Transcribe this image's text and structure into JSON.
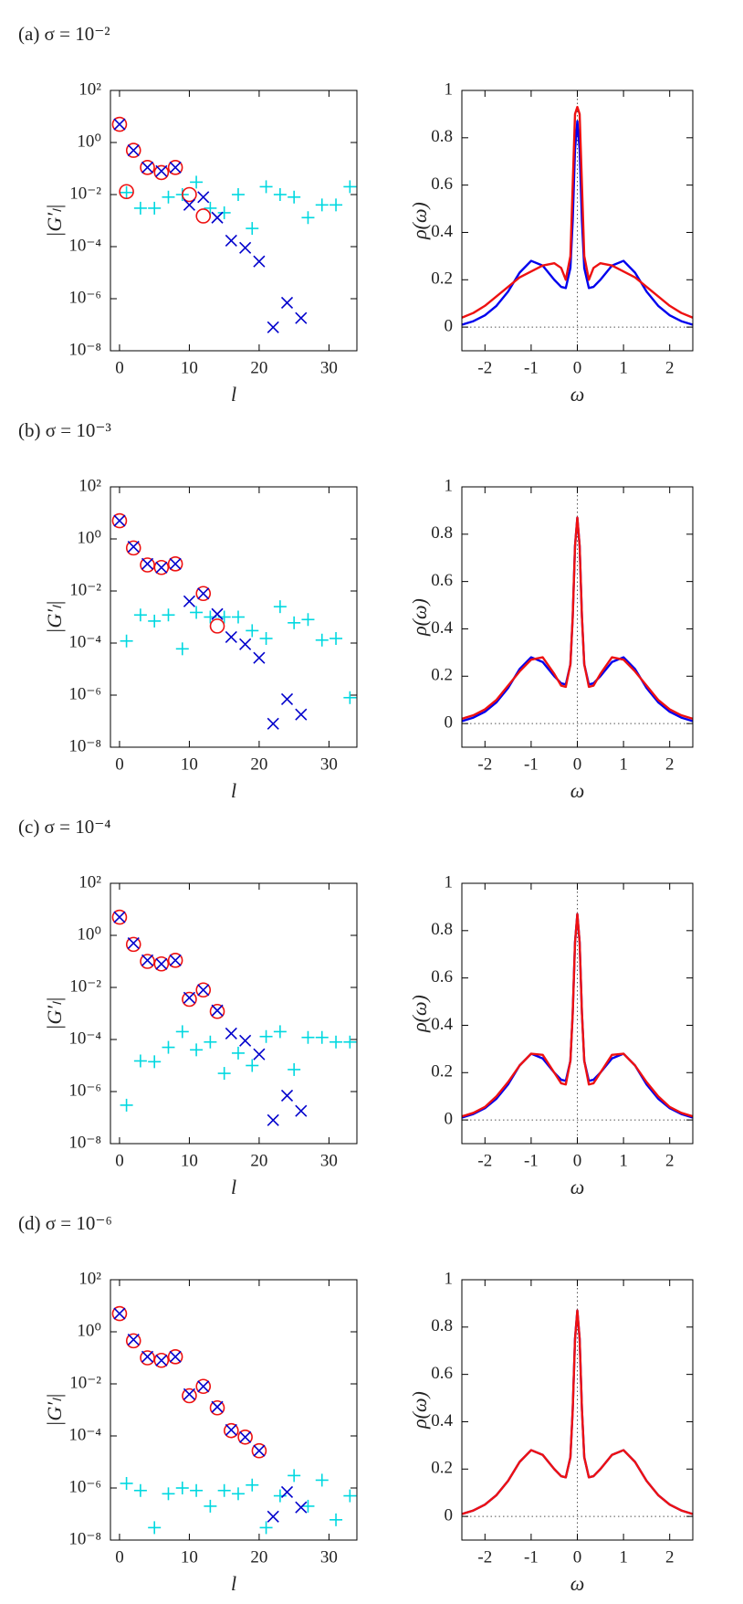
{
  "chart_data": [
    {
      "type": "scatter",
      "title": "(a) σ = 10⁻²",
      "x_label": "l",
      "y_label": "|G′ₗ|",
      "log_y": true,
      "xlim": [
        -1.3,
        34
      ],
      "ylim": [
        1e-08,
        100
      ],
      "xticks": [
        0,
        10,
        20,
        30
      ],
      "yticks": [
        {
          "value": 1e-08,
          "label": "10⁻⁸"
        },
        {
          "value": 1e-06,
          "label": "10⁻⁶"
        },
        {
          "value": 0.0001,
          "label": "10⁻⁴"
        },
        {
          "value": 0.01,
          "label": "10⁻²"
        },
        {
          "value": 1,
          "label": "10⁰"
        },
        {
          "value": 100,
          "label": "10²"
        }
      ],
      "series": [
        {
          "marker": "plus",
          "color": "#00d8e0",
          "x": [
            1,
            3,
            5,
            7,
            9,
            11,
            13,
            15,
            17,
            19,
            21,
            23,
            25,
            27,
            29,
            31,
            33
          ],
          "values": [
            0.012,
            0.003,
            0.003,
            0.008,
            0.01,
            0.03,
            0.003,
            0.002,
            0.01,
            0.0005,
            0.02,
            0.01,
            0.008,
            0.0013,
            0.004,
            0.004,
            0.02
          ]
        },
        {
          "marker": "circle",
          "color": "#ee1111",
          "x": [
            0,
            1,
            2,
            4,
            6,
            8,
            10,
            12
          ],
          "values": [
            5,
            0.013,
            0.5,
            0.11,
            0.07,
            0.11,
            0.01,
            0.0015
          ]
        },
        {
          "marker": "x",
          "color": "#0000cc",
          "x": [
            0,
            2,
            4,
            6,
            8,
            10,
            12,
            14,
            16,
            18,
            20,
            22,
            24,
            26
          ],
          "values": [
            5,
            0.5,
            0.11,
            0.08,
            0.11,
            0.004,
            0.008,
            0.0013,
            0.00017,
            9e-05,
            2.7e-05,
            8e-08,
            7e-07,
            1.8e-07
          ]
        }
      ]
    },
    {
      "type": "line",
      "x_label": "ω",
      "y_label": "ρ(ω)",
      "xlim": [
        -2.5,
        2.5
      ],
      "ylim": [
        -0.1,
        1
      ],
      "xticks": [
        -2,
        -1,
        0,
        1,
        2
      ],
      "yticks": [
        0,
        0.2,
        0.4,
        0.6,
        0.8,
        1
      ],
      "x": [
        -2.5,
        -2.25,
        -2,
        -1.75,
        -1.5,
        -1.25,
        -1,
        -0.75,
        -0.5,
        -0.35,
        -0.25,
        -0.15,
        -0.1,
        -0.05,
        0,
        0.05,
        0.1,
        0.15,
        0.25,
        0.35,
        0.5,
        0.75,
        1,
        1.25,
        1.5,
        1.75,
        2,
        2.25,
        2.5
      ],
      "series": [
        {
          "color": "#0000ee",
          "values": [
            0.01,
            0.025,
            0.05,
            0.09,
            0.15,
            0.23,
            0.28,
            0.26,
            0.2,
            0.17,
            0.165,
            0.25,
            0.45,
            0.75,
            0.87,
            0.75,
            0.45,
            0.25,
            0.165,
            0.17,
            0.2,
            0.26,
            0.28,
            0.23,
            0.15,
            0.09,
            0.05,
            0.025,
            0.01
          ]
        },
        {
          "color": "#ee1111",
          "values": [
            0.04,
            0.06,
            0.09,
            0.13,
            0.17,
            0.21,
            0.235,
            0.26,
            0.27,
            0.25,
            0.2,
            0.3,
            0.6,
            0.9,
            0.93,
            0.9,
            0.6,
            0.3,
            0.2,
            0.25,
            0.27,
            0.26,
            0.235,
            0.21,
            0.17,
            0.13,
            0.09,
            0.06,
            0.04
          ]
        }
      ]
    },
    {
      "type": "scatter",
      "title": "(b) σ = 10⁻³",
      "x_label": "l",
      "y_label": "|G′ₗ|",
      "log_y": true,
      "xlim": [
        -1.3,
        34
      ],
      "ylim": [
        1e-08,
        100
      ],
      "xticks": [
        0,
        10,
        20,
        30
      ],
      "yticks": [
        {
          "value": 1e-08,
          "label": "10⁻⁸"
        },
        {
          "value": 1e-06,
          "label": "10⁻⁶"
        },
        {
          "value": 0.0001,
          "label": "10⁻⁴"
        },
        {
          "value": 0.01,
          "label": "10⁻²"
        },
        {
          "value": 1,
          "label": "10⁰"
        },
        {
          "value": 100,
          "label": "10²"
        }
      ],
      "series": [
        {
          "marker": "plus",
          "color": "#00d8e0",
          "x": [
            1,
            3,
            5,
            7,
            9,
            11,
            13,
            15,
            17,
            19,
            21,
            23,
            25,
            27,
            29,
            31,
            33
          ],
          "values": [
            0.00012,
            0.0012,
            0.0007,
            0.0012,
            6e-05,
            0.0015,
            0.001,
            0.001,
            0.001,
            0.0003,
            0.00015,
            0.0025,
            0.0006,
            0.0008,
            0.00013,
            0.00015,
            8e-07
          ]
        },
        {
          "marker": "circle",
          "color": "#ee1111",
          "x": [
            0,
            2,
            4,
            6,
            8,
            12,
            14
          ],
          "values": [
            5,
            0.45,
            0.1,
            0.08,
            0.11,
            0.008,
            0.00045
          ]
        },
        {
          "marker": "x",
          "color": "#0000cc",
          "x": [
            0,
            2,
            4,
            6,
            8,
            10,
            12,
            14,
            16,
            18,
            20,
            22,
            24,
            26
          ],
          "values": [
            5,
            0.5,
            0.11,
            0.08,
            0.11,
            0.004,
            0.008,
            0.0013,
            0.00017,
            9e-05,
            2.7e-05,
            8e-08,
            7e-07,
            1.8e-07
          ]
        }
      ]
    },
    {
      "type": "line",
      "x_label": "ω",
      "y_label": "ρ(ω)",
      "xlim": [
        -2.5,
        2.5
      ],
      "ylim": [
        -0.1,
        1
      ],
      "xticks": [
        -2,
        -1,
        0,
        1,
        2
      ],
      "yticks": [
        0,
        0.2,
        0.4,
        0.6,
        0.8,
        1
      ],
      "x": [
        -2.5,
        -2.25,
        -2,
        -1.75,
        -1.5,
        -1.25,
        -1,
        -0.75,
        -0.5,
        -0.35,
        -0.25,
        -0.15,
        -0.1,
        -0.05,
        0,
        0.05,
        0.1,
        0.15,
        0.25,
        0.35,
        0.5,
        0.75,
        1,
        1.25,
        1.5,
        1.75,
        2,
        2.25,
        2.5
      ],
      "series": [
        {
          "color": "#0000ee",
          "values": [
            0.01,
            0.025,
            0.05,
            0.09,
            0.15,
            0.23,
            0.28,
            0.26,
            0.2,
            0.17,
            0.165,
            0.25,
            0.45,
            0.75,
            0.87,
            0.75,
            0.45,
            0.25,
            0.165,
            0.17,
            0.2,
            0.26,
            0.28,
            0.23,
            0.15,
            0.09,
            0.05,
            0.025,
            0.01
          ]
        },
        {
          "color": "#ee1111",
          "values": [
            0.02,
            0.035,
            0.06,
            0.1,
            0.16,
            0.22,
            0.27,
            0.28,
            0.21,
            0.16,
            0.155,
            0.25,
            0.45,
            0.75,
            0.87,
            0.75,
            0.45,
            0.25,
            0.155,
            0.16,
            0.21,
            0.28,
            0.27,
            0.22,
            0.16,
            0.1,
            0.06,
            0.035,
            0.02
          ]
        }
      ]
    },
    {
      "type": "scatter",
      "title": "(c) σ = 10⁻⁴",
      "x_label": "l",
      "y_label": "|G′ₗ|",
      "log_y": true,
      "xlim": [
        -1.3,
        34
      ],
      "ylim": [
        1e-08,
        100
      ],
      "xticks": [
        0,
        10,
        20,
        30
      ],
      "yticks": [
        {
          "value": 1e-08,
          "label": "10⁻⁸"
        },
        {
          "value": 1e-06,
          "label": "10⁻⁶"
        },
        {
          "value": 0.0001,
          "label": "10⁻⁴"
        },
        {
          "value": 0.01,
          "label": "10⁻²"
        },
        {
          "value": 1,
          "label": "10⁰"
        },
        {
          "value": 100,
          "label": "10²"
        }
      ],
      "series": [
        {
          "marker": "plus",
          "color": "#00d8e0",
          "x": [
            1,
            3,
            5,
            7,
            9,
            11,
            13,
            15,
            17,
            19,
            21,
            23,
            25,
            27,
            29,
            31,
            33
          ],
          "values": [
            3e-07,
            1.5e-05,
            1.4e-05,
            5e-05,
            0.0002,
            4e-05,
            8e-05,
            5e-06,
            3e-05,
            1e-05,
            0.00013,
            0.0002,
            7e-06,
            0.00012,
            0.00012,
            8e-05,
            8e-05
          ]
        },
        {
          "marker": "circle",
          "color": "#ee1111",
          "x": [
            0,
            2,
            4,
            6,
            8,
            10,
            12,
            14
          ],
          "values": [
            5,
            0.45,
            0.1,
            0.08,
            0.11,
            0.0035,
            0.008,
            0.0012
          ]
        },
        {
          "marker": "x",
          "color": "#0000cc",
          "x": [
            0,
            2,
            4,
            6,
            8,
            10,
            12,
            14,
            16,
            18,
            20,
            22,
            24,
            26
          ],
          "values": [
            5,
            0.5,
            0.11,
            0.08,
            0.11,
            0.004,
            0.008,
            0.0013,
            0.00017,
            9e-05,
            2.7e-05,
            8e-08,
            7e-07,
            1.8e-07
          ]
        }
      ]
    },
    {
      "type": "line",
      "x_label": "ω",
      "y_label": "ρ(ω)",
      "xlim": [
        -2.5,
        2.5
      ],
      "ylim": [
        -0.1,
        1
      ],
      "xticks": [
        -2,
        -1,
        0,
        1,
        2
      ],
      "yticks": [
        0,
        0.2,
        0.4,
        0.6,
        0.8,
        1
      ],
      "x": [
        -2.5,
        -2.25,
        -2,
        -1.75,
        -1.5,
        -1.25,
        -1,
        -0.75,
        -0.5,
        -0.35,
        -0.25,
        -0.15,
        -0.1,
        -0.05,
        0,
        0.05,
        0.1,
        0.15,
        0.25,
        0.35,
        0.5,
        0.75,
        1,
        1.25,
        1.5,
        1.75,
        2,
        2.25,
        2.5
      ],
      "series": [
        {
          "color": "#0000ee",
          "values": [
            0.01,
            0.025,
            0.05,
            0.09,
            0.15,
            0.23,
            0.28,
            0.26,
            0.2,
            0.17,
            0.165,
            0.25,
            0.45,
            0.75,
            0.87,
            0.75,
            0.45,
            0.25,
            0.165,
            0.17,
            0.2,
            0.26,
            0.28,
            0.23,
            0.15,
            0.09,
            0.05,
            0.025,
            0.01
          ]
        },
        {
          "color": "#ee1111",
          "values": [
            0.015,
            0.03,
            0.055,
            0.1,
            0.16,
            0.23,
            0.28,
            0.275,
            0.2,
            0.155,
            0.15,
            0.25,
            0.45,
            0.75,
            0.87,
            0.75,
            0.45,
            0.25,
            0.15,
            0.155,
            0.2,
            0.275,
            0.28,
            0.23,
            0.16,
            0.1,
            0.055,
            0.03,
            0.015
          ]
        }
      ]
    },
    {
      "type": "scatter",
      "title": "(d) σ = 10⁻⁶",
      "x_label": "l",
      "y_label": "|G′ₗ|",
      "log_y": true,
      "xlim": [
        -1.3,
        34
      ],
      "ylim": [
        1e-08,
        100
      ],
      "xticks": [
        0,
        10,
        20,
        30
      ],
      "yticks": [
        {
          "value": 1e-08,
          "label": "10⁻⁸"
        },
        {
          "value": 1e-06,
          "label": "10⁻⁶"
        },
        {
          "value": 0.0001,
          "label": "10⁻⁴"
        },
        {
          "value": 0.01,
          "label": "10⁻²"
        },
        {
          "value": 1,
          "label": "10⁰"
        },
        {
          "value": 100,
          "label": "10²"
        }
      ],
      "series": [
        {
          "marker": "plus",
          "color": "#00d8e0",
          "x": [
            1,
            3,
            5,
            7,
            9,
            11,
            13,
            15,
            17,
            19,
            21,
            23,
            25,
            27,
            29,
            31,
            33
          ],
          "values": [
            1.5e-06,
            8e-07,
            3e-08,
            6e-07,
            1e-06,
            8e-07,
            2e-07,
            8e-07,
            6e-07,
            1.3e-06,
            3e-08,
            5e-07,
            3e-06,
            2e-07,
            2e-06,
            6e-08,
            5e-07
          ]
        },
        {
          "marker": "circle",
          "color": "#ee1111",
          "x": [
            0,
            2,
            4,
            6,
            8,
            10,
            12,
            14,
            16,
            18,
            20
          ],
          "values": [
            5,
            0.45,
            0.1,
            0.08,
            0.11,
            0.0035,
            0.008,
            0.0012,
            0.00016,
            9e-05,
            2.7e-05
          ]
        },
        {
          "marker": "x",
          "color": "#0000cc",
          "x": [
            0,
            2,
            4,
            6,
            8,
            10,
            12,
            14,
            16,
            18,
            20,
            22,
            24,
            26
          ],
          "values": [
            5,
            0.5,
            0.11,
            0.08,
            0.11,
            0.004,
            0.008,
            0.0013,
            0.00017,
            9e-05,
            2.7e-05,
            8e-08,
            7e-07,
            1.8e-07
          ]
        }
      ]
    },
    {
      "type": "line",
      "x_label": "ω",
      "y_label": "ρ(ω)",
      "xlim": [
        -2.5,
        2.5
      ],
      "ylim": [
        -0.1,
        1
      ],
      "xticks": [
        -2,
        -1,
        0,
        1,
        2
      ],
      "yticks": [
        0,
        0.2,
        0.4,
        0.6,
        0.8,
        1
      ],
      "x": [
        -2.5,
        -2.25,
        -2,
        -1.75,
        -1.5,
        -1.25,
        -1,
        -0.75,
        -0.5,
        -0.35,
        -0.25,
        -0.15,
        -0.1,
        -0.05,
        0,
        0.05,
        0.1,
        0.15,
        0.25,
        0.35,
        0.5,
        0.75,
        1,
        1.25,
        1.5,
        1.75,
        2,
        2.25,
        2.5
      ],
      "series": [
        {
          "color": "#0000ee",
          "values": [
            0.01,
            0.025,
            0.05,
            0.09,
            0.15,
            0.23,
            0.28,
            0.26,
            0.2,
            0.17,
            0.165,
            0.25,
            0.45,
            0.75,
            0.87,
            0.75,
            0.45,
            0.25,
            0.165,
            0.17,
            0.2,
            0.26,
            0.28,
            0.23,
            0.15,
            0.09,
            0.05,
            0.025,
            0.01
          ]
        },
        {
          "color": "#ee1111",
          "values": [
            0.01,
            0.025,
            0.05,
            0.09,
            0.15,
            0.23,
            0.28,
            0.26,
            0.2,
            0.17,
            0.165,
            0.25,
            0.45,
            0.75,
            0.87,
            0.75,
            0.45,
            0.25,
            0.165,
            0.17,
            0.2,
            0.26,
            0.28,
            0.23,
            0.15,
            0.09,
            0.05,
            0.025,
            0.01
          ]
        }
      ]
    }
  ]
}
